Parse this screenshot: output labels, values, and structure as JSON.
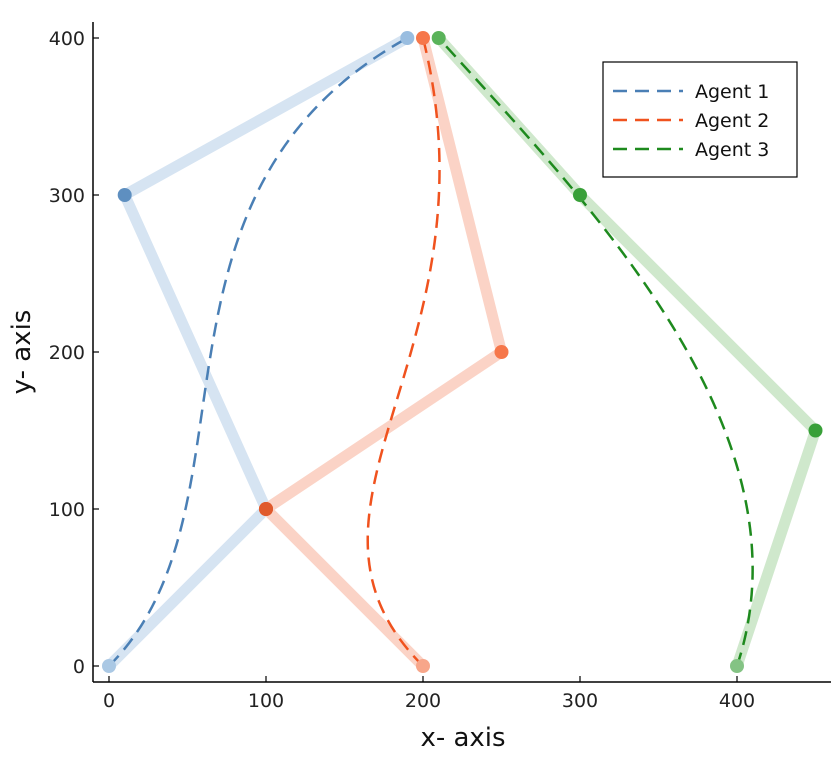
{
  "chart_data": {
    "type": "line",
    "xlabel": "x- axis",
    "ylabel": "y- axis",
    "xlim": [
      -10,
      460
    ],
    "ylim": [
      -10,
      410
    ],
    "xticks": [
      "0",
      "100",
      "200",
      "300",
      "400"
    ],
    "yticks": [
      "0",
      "100",
      "200",
      "300",
      "400"
    ],
    "legend_position": "top-right",
    "grid": false,
    "series": [
      {
        "name": "Agent 1",
        "color": "#4a7fb5",
        "light_color": "#d6e4f2",
        "control_points": [
          [
            0,
            0
          ],
          [
            100,
            100
          ],
          [
            10,
            300
          ],
          [
            190,
            400
          ]
        ],
        "dot_colors": [
          "#aac8e4",
          "#e05a2c",
          "#5e8fc0",
          "#99bde0"
        ]
      },
      {
        "name": "Agent 2",
        "color": "#f0521e",
        "light_color": "#fbd3c6",
        "control_points": [
          [
            200,
            0
          ],
          [
            100,
            100
          ],
          [
            250,
            200
          ],
          [
            200,
            400
          ]
        ],
        "dot_colors": [
          "#f7a68a",
          "#e05a2c",
          "#f6774a",
          "#f6774a"
        ]
      },
      {
        "name": "Agent 3",
        "color": "#1e8a1e",
        "light_color": "#cfe8cc",
        "control_points": [
          [
            400,
            0
          ],
          [
            450,
            150
          ],
          [
            300,
            300
          ],
          [
            210,
            400
          ]
        ],
        "dot_colors": [
          "#84c384",
          "#38a038",
          "#38a038",
          "#5ab35a"
        ]
      }
    ]
  }
}
